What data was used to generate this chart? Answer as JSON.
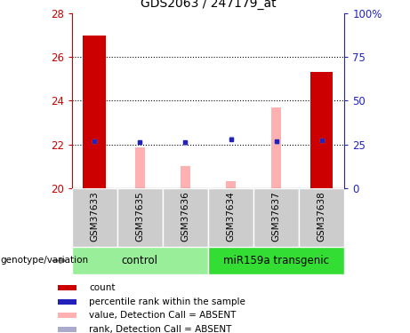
{
  "title": "GDS2063 / 247179_at",
  "samples": [
    "GSM37633",
    "GSM37635",
    "GSM37636",
    "GSM37634",
    "GSM37637",
    "GSM37638"
  ],
  "group_labels": [
    "control",
    "miR159a transgenic"
  ],
  "ylim_left": [
    20,
    28
  ],
  "ylim_right": [
    0,
    100
  ],
  "yticks_left": [
    20,
    22,
    24,
    26,
    28
  ],
  "yticks_right": [
    0,
    25,
    50,
    75,
    100
  ],
  "ytick_right_labels": [
    "0",
    "25",
    "50",
    "75",
    "100%"
  ],
  "red_bars": [
    27.0,
    0,
    0,
    0,
    0,
    25.3
  ],
  "pink_bars": [
    0,
    21.85,
    21.0,
    20.3,
    23.7,
    0
  ],
  "blue_squares": [
    22.15,
    22.1,
    22.1,
    22.25,
    22.15,
    22.2
  ],
  "light_blue_squares": [
    22.15,
    22.1,
    22.05,
    22.28,
    22.12,
    22.2
  ],
  "red_bar_color": "#cc0000",
  "pink_bar_color": "#ffb0b0",
  "blue_sq_color": "#2222bb",
  "light_blue_sq_color": "#aaaacc",
  "bg_plot": "#ffffff",
  "bg_xticklabel": "#cccccc",
  "bg_group_control": "#99ee99",
  "bg_group_transgenic": "#33dd33",
  "left_axis_color": "#cc0000",
  "right_axis_color": "#2222bb",
  "legend_items": [
    "count",
    "percentile rank within the sample",
    "value, Detection Call = ABSENT",
    "rank, Detection Call = ABSENT"
  ],
  "legend_colors": [
    "#cc0000",
    "#2222bb",
    "#ffb0b0",
    "#aaaacc"
  ],
  "genotype_label": "genotype/variation"
}
